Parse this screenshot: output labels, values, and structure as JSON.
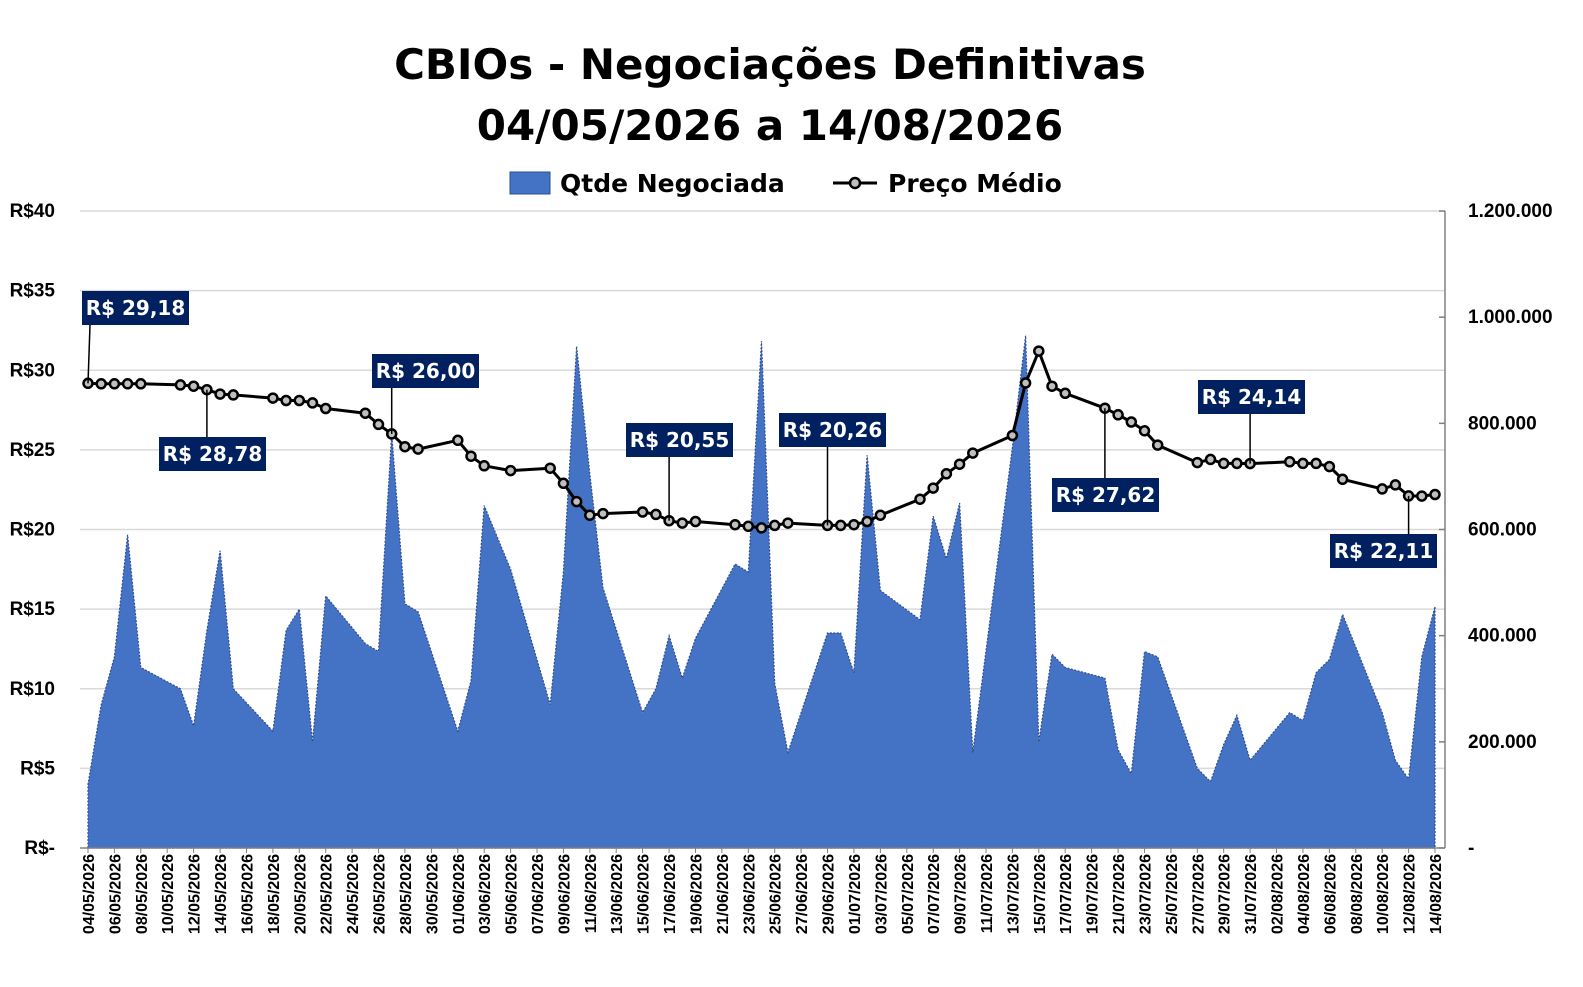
{
  "chart_data": {
    "type": "area+line",
    "title": "CBIOs - Negociações Definitivas",
    "subtitle": "04/05/2026 a 14/08/2026",
    "legend": {
      "position": "top",
      "items": [
        {
          "label": "Qtde Negociada",
          "kind": "area"
        },
        {
          "label": "Preço Médio",
          "kind": "line"
        }
      ]
    },
    "colors": {
      "area": "#4472C4",
      "area_edge": "#2F4F8F",
      "line": "#000000",
      "marker_fill": "#BFBFBF",
      "callout": "#002060",
      "grid": "#D9D9D9"
    },
    "y_left": {
      "min": 0,
      "max": 40,
      "ticks": [
        "R$-",
        "R$5",
        "R$10",
        "R$15",
        "R$20",
        "R$25",
        "R$30",
        "R$35",
        "R$40"
      ]
    },
    "y_right": {
      "min": 0,
      "max": 1200000,
      "ticks": [
        "-",
        "200.000",
        "400.000",
        "600.000",
        "800.000",
        "1.000.000",
        "1.200.000"
      ]
    },
    "x_axis": {
      "start_date": "04/05/2026",
      "end_date": "14/08/2026",
      "tick_labels": [
        "04/05/2026",
        "06/05/2026",
        "08/05/2026",
        "10/05/2026",
        "12/05/2026",
        "14/05/2026",
        "16/05/2026",
        "18/05/2026",
        "20/05/2026",
        "22/05/2026",
        "24/05/2026",
        "26/05/2026",
        "28/05/2026",
        "30/05/2026",
        "01/06/2026",
        "03/06/2026",
        "05/06/2026",
        "07/06/2026",
        "09/06/2026",
        "11/06/2026",
        "13/06/2026",
        "15/06/2026",
        "17/06/2026",
        "19/06/2026",
        "21/06/2026",
        "23/06/2026",
        "25/06/2026",
        "27/06/2026",
        "29/06/2026",
        "01/07/2026",
        "03/07/2026",
        "05/07/2026",
        "07/07/2026",
        "09/07/2026",
        "11/07/2026",
        "13/07/2026",
        "15/07/2026",
        "17/07/2026",
        "19/07/2026",
        "21/07/2026",
        "23/07/2026",
        "25/07/2026",
        "27/07/2026",
        "29/07/2026",
        "31/07/2026",
        "02/08/2026",
        "04/08/2026",
        "06/08/2026",
        "08/08/2026",
        "10/08/2026",
        "12/08/2026",
        "14/08/2026"
      ]
    },
    "series": [
      {
        "name": "Qtde Negociada",
        "axis": "right",
        "x": [
          "04/05/2026",
          "05/05/2026",
          "06/05/2026",
          "07/05/2026",
          "08/05/2026",
          "11/05/2026",
          "12/05/2026",
          "13/05/2026",
          "14/05/2026",
          "15/05/2026",
          "18/05/2026",
          "19/05/2026",
          "20/05/2026",
          "21/05/2026",
          "22/05/2026",
          "25/05/2026",
          "26/05/2026",
          "27/05/2026",
          "28/05/2026",
          "29/05/2026",
          "01/06/2026",
          "02/06/2026",
          "03/06/2026",
          "05/06/2026",
          "08/06/2026",
          "09/06/2026",
          "10/06/2026",
          "11/06/2026",
          "12/06/2026",
          "15/06/2026",
          "16/06/2026",
          "17/06/2026",
          "18/06/2026",
          "19/06/2026",
          "22/06/2026",
          "23/06/2026",
          "24/06/2026",
          "25/06/2026",
          "26/06/2026",
          "29/06/2026",
          "30/06/2026",
          "01/07/2026",
          "02/07/2026",
          "03/07/2026",
          "06/07/2026",
          "07/07/2026",
          "08/07/2026",
          "09/07/2026",
          "10/07/2026",
          "13/07/2026",
          "14/07/2026",
          "15/07/2026",
          "16/07/2026",
          "17/07/2026",
          "20/07/2026",
          "21/07/2026",
          "22/07/2026",
          "23/07/2026",
          "24/07/2026",
          "27/07/2026",
          "28/07/2026",
          "29/07/2026",
          "30/07/2026",
          "31/07/2026",
          "03/08/2026",
          "04/08/2026",
          "05/08/2026",
          "06/08/2026",
          "07/08/2026",
          "10/08/2026",
          "11/08/2026",
          "12/08/2026",
          "13/08/2026",
          "14/08/2026"
        ],
        "values": [
          120000,
          270000,
          360000,
          590000,
          340000,
          300000,
          230000,
          410000,
          560000,
          300000,
          220000,
          410000,
          450000,
          200000,
          475000,
          385000,
          370000,
          780000,
          460000,
          445000,
          220000,
          315000,
          645000,
          525000,
          270000,
          520000,
          945000,
          705000,
          490000,
          255000,
          300000,
          400000,
          320000,
          395000,
          535000,
          520000,
          955000,
          310000,
          180000,
          405000,
          405000,
          330000,
          740000,
          485000,
          430000,
          625000,
          545000,
          650000,
          180000,
          755000,
          965000,
          200000,
          365000,
          340000,
          320000,
          185000,
          140000,
          370000,
          360000,
          150000,
          125000,
          195000,
          250000,
          165000,
          255000,
          240000,
          330000,
          355000,
          440000,
          255000,
          165000,
          130000,
          360000,
          455000
        ]
      },
      {
        "name": "Preço Médio",
        "axis": "left",
        "x": [
          "04/05/2026",
          "05/05/2026",
          "06/05/2026",
          "07/05/2026",
          "08/05/2026",
          "11/05/2026",
          "12/05/2026",
          "13/05/2026",
          "14/05/2026",
          "15/05/2026",
          "18/05/2026",
          "19/05/2026",
          "20/05/2026",
          "21/05/2026",
          "22/05/2026",
          "25/05/2026",
          "26/05/2026",
          "27/05/2026",
          "28/05/2026",
          "29/05/2026",
          "01/06/2026",
          "02/06/2026",
          "03/06/2026",
          "05/06/2026",
          "08/06/2026",
          "09/06/2026",
          "10/06/2026",
          "11/06/2026",
          "12/06/2026",
          "15/06/2026",
          "16/06/2026",
          "17/06/2026",
          "18/06/2026",
          "19/06/2026",
          "22/06/2026",
          "23/06/2026",
          "24/06/2026",
          "25/06/2026",
          "26/06/2026",
          "29/06/2026",
          "30/06/2026",
          "01/07/2026",
          "02/07/2026",
          "03/07/2026",
          "06/07/2026",
          "07/07/2026",
          "08/07/2026",
          "09/07/2026",
          "10/07/2026",
          "13/07/2026",
          "14/07/2026",
          "15/07/2026",
          "16/07/2026",
          "17/07/2026",
          "20/07/2026",
          "21/07/2026",
          "22/07/2026",
          "23/07/2026",
          "24/07/2026",
          "27/07/2026",
          "28/07/2026",
          "29/07/2026",
          "30/07/2026",
          "31/07/2026",
          "03/08/2026",
          "04/08/2026",
          "05/08/2026",
          "06/08/2026",
          "07/08/2026",
          "10/08/2026",
          "11/08/2026",
          "12/08/2026",
          "13/08/2026",
          "14/08/2026"
        ],
        "values": [
          29.18,
          29.15,
          29.15,
          29.15,
          29.15,
          29.08,
          29.0,
          28.78,
          28.5,
          28.45,
          28.25,
          28.1,
          28.1,
          27.95,
          27.6,
          27.3,
          26.6,
          26.0,
          25.2,
          25.05,
          25.6,
          24.6,
          24.0,
          23.7,
          23.85,
          22.9,
          21.75,
          20.9,
          21.0,
          21.1,
          20.95,
          20.55,
          20.4,
          20.5,
          20.3,
          20.2,
          20.1,
          20.26,
          20.4,
          20.26,
          20.26,
          20.3,
          20.5,
          20.9,
          21.9,
          22.6,
          23.5,
          24.1,
          24.8,
          25.9,
          29.2,
          31.2,
          29.0,
          28.55,
          27.62,
          27.2,
          26.75,
          26.2,
          25.3,
          24.2,
          24.4,
          24.15,
          24.15,
          24.14,
          24.25,
          24.15,
          24.15,
          23.95,
          23.15,
          22.55,
          22.8,
          22.11,
          22.1,
          22.2
        ]
      }
    ],
    "callouts": [
      {
        "text": "R$ 29,18",
        "x": "04/05/2026"
      },
      {
        "text": "R$ 28,78",
        "x": "13/05/2026"
      },
      {
        "text": "R$ 26,00",
        "x": "27/05/2026"
      },
      {
        "text": "R$ 20,55",
        "x": "17/06/2026"
      },
      {
        "text": "R$ 20,26",
        "x": "29/06/2026"
      },
      {
        "text": "R$ 27,62",
        "x": "20/07/2026"
      },
      {
        "text": "R$ 24,14",
        "x": "31/07/2026"
      },
      {
        "text": "R$ 22,11",
        "x": "12/08/2026"
      }
    ]
  }
}
